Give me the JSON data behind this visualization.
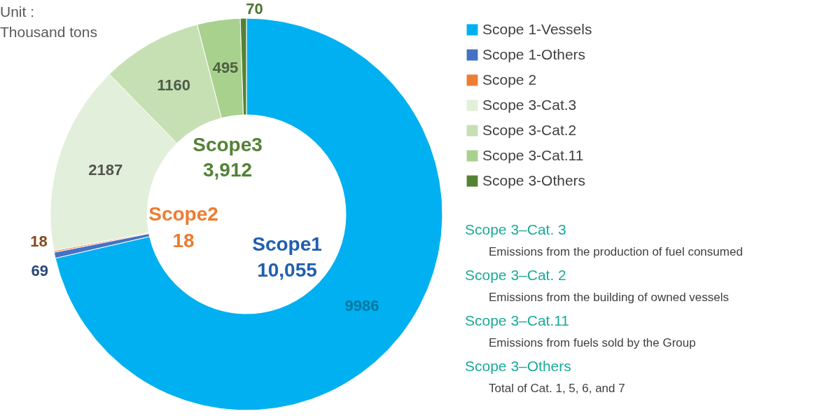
{
  "chart_data": {
    "type": "donut",
    "categories": [
      "Scope 1-Vessels",
      "Scope 1-Others",
      "Scope 2",
      "Scope 3-Cat.3",
      "Scope 3-Cat.2",
      "Scope 3-Cat.11",
      "Scope 3-Others"
    ],
    "values": [
      9986,
      69,
      18,
      2187,
      1160,
      495,
      70
    ],
    "colors": [
      "#00b0f0",
      "#4472c4",
      "#ed7d31",
      "#e2efda",
      "#c6e0b4",
      "#a9d18e",
      "#548235"
    ],
    "data_labels": true,
    "legend": "right",
    "annotations": [
      "Unit :",
      "Thousand tons",
      "Scope3",
      "3,912",
      "Scope2",
      "18",
      "Scope1",
      "10,055",
      "Scope 3–Cat. 3",
      "Emissions from the production of fuel consumed",
      "Scope 3–Cat. 2",
      "Emissions from the building of owned vessels",
      "Scope 3–Cat.11",
      "Emissions from fuels sold by the Group",
      "Scope 3–Others",
      "Total of Cat. 1, 5, 6, and 7"
    ]
  }
}
